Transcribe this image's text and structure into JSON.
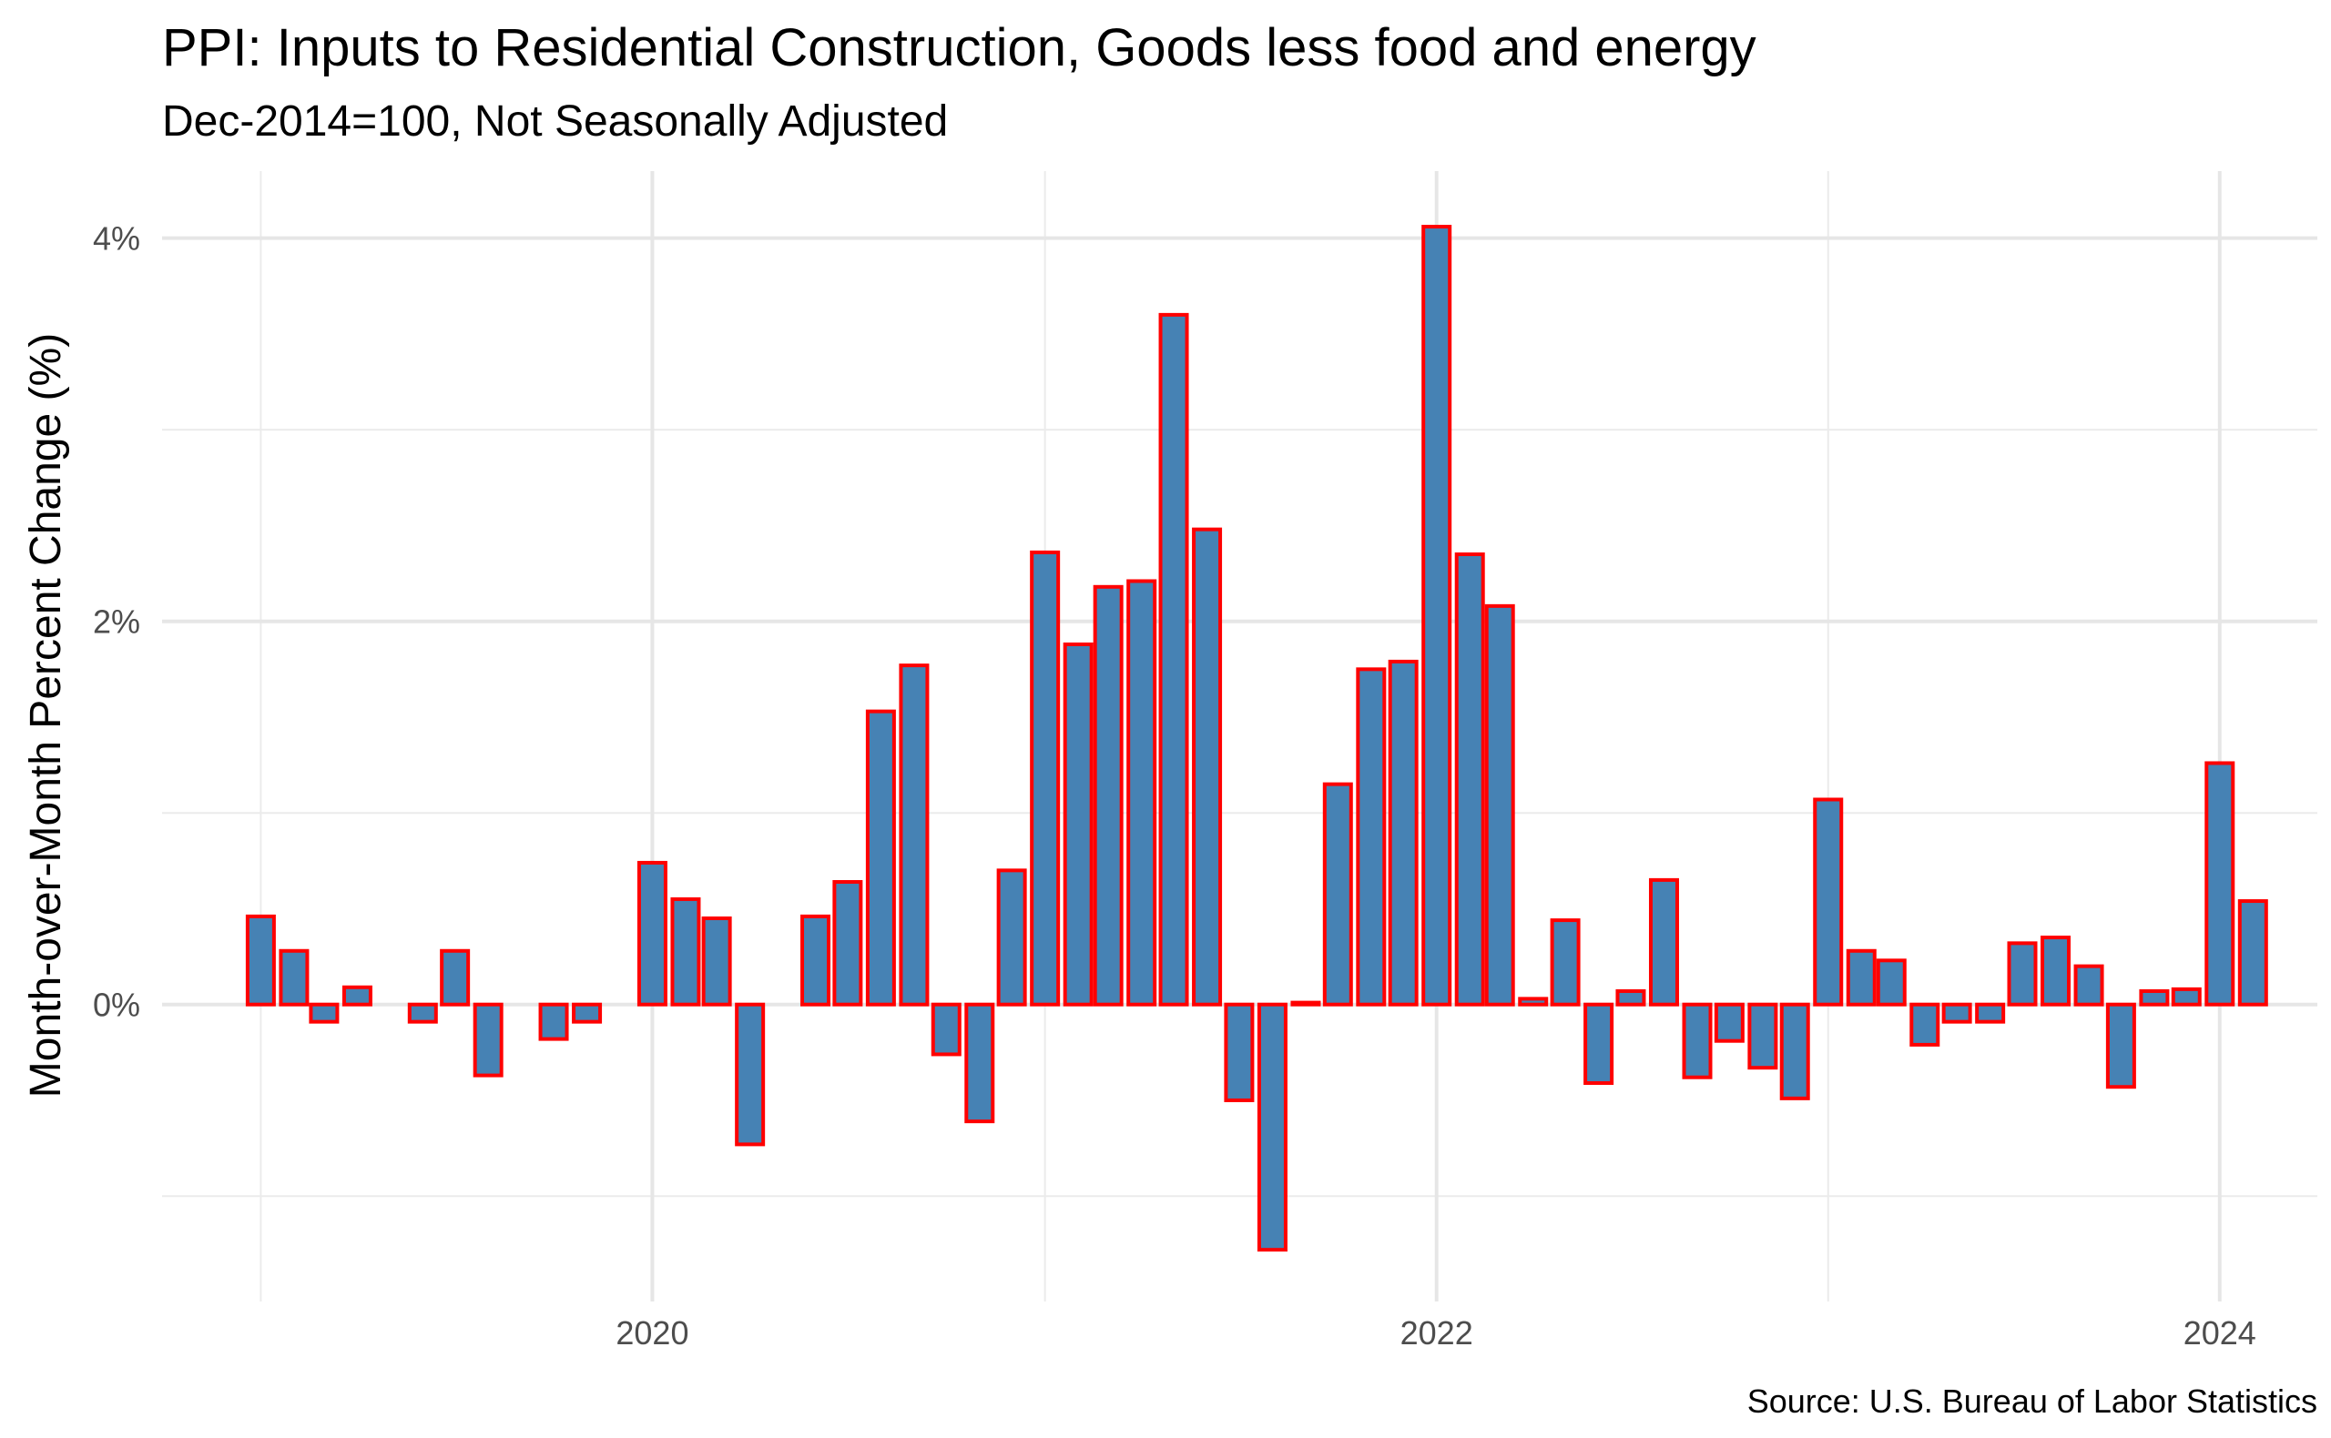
{
  "chart_data": {
    "type": "bar",
    "title": "PPI: Inputs to Residential Construction, Goods less food and energy",
    "subtitle": "Dec-2014=100, Not Seasonally Adjusted",
    "xlabel": "",
    "ylabel": "Month-over-Month Percent Change (%)",
    "caption": "Source: U.S. Bureau of Labor Statistics",
    "x_ticks": [
      "2020",
      "2022",
      "2024"
    ],
    "y_ticks": [
      "0%",
      "2%",
      "4%"
    ],
    "ylim": [
      -1.55,
      4.35
    ],
    "xlim": [
      "2018-10-01",
      "2024-04-01"
    ],
    "grid": true,
    "legend": "none",
    "bar_fill": "#4682b4",
    "bar_outline": "#ff0000",
    "dates": [
      "2019-01",
      "2019-02",
      "2019-03",
      "2019-04",
      "2019-05",
      "2019-06",
      "2019-07",
      "2019-08",
      "2019-09",
      "2019-10",
      "2019-11",
      "2019-12",
      "2020-01",
      "2020-02",
      "2020-03",
      "2020-04",
      "2020-05",
      "2020-06",
      "2020-07",
      "2020-08",
      "2020-09",
      "2020-10",
      "2020-11",
      "2020-12",
      "2021-01",
      "2021-02",
      "2021-03",
      "2021-04",
      "2021-05",
      "2021-06",
      "2021-07",
      "2021-08",
      "2021-09",
      "2021-10",
      "2021-11",
      "2021-12",
      "2022-01",
      "2022-02",
      "2022-03",
      "2022-04",
      "2022-05",
      "2022-06",
      "2022-07",
      "2022-08",
      "2022-09",
      "2022-10",
      "2022-11",
      "2022-12",
      "2023-01",
      "2023-02",
      "2023-03",
      "2023-04",
      "2023-05",
      "2023-06",
      "2023-07",
      "2023-08",
      "2023-09",
      "2023-10",
      "2023-11",
      "2023-12",
      "2024-01",
      "2024-02"
    ],
    "values": [
      0.46,
      0.28,
      -0.09,
      0.09,
      0.0,
      -0.09,
      0.28,
      -0.37,
      0.0,
      -0.18,
      -0.09,
      0.0,
      0.74,
      0.55,
      0.45,
      -0.73,
      0.0,
      0.46,
      0.64,
      1.53,
      1.77,
      -0.26,
      -0.61,
      0.7,
      2.36,
      1.88,
      2.18,
      2.21,
      3.6,
      2.48,
      -0.5,
      -1.28,
      0.01,
      1.15,
      1.75,
      1.79,
      4.06,
      2.35,
      2.08,
      0.03,
      0.44,
      -0.41,
      0.07,
      0.65,
      -0.38,
      -0.19,
      -0.33,
      -0.49,
      1.07,
      0.28,
      0.23,
      -0.21,
      -0.09,
      -0.09,
      0.32,
      0.35,
      0.2,
      -0.43,
      0.07,
      0.08,
      1.26,
      0.54
    ]
  }
}
